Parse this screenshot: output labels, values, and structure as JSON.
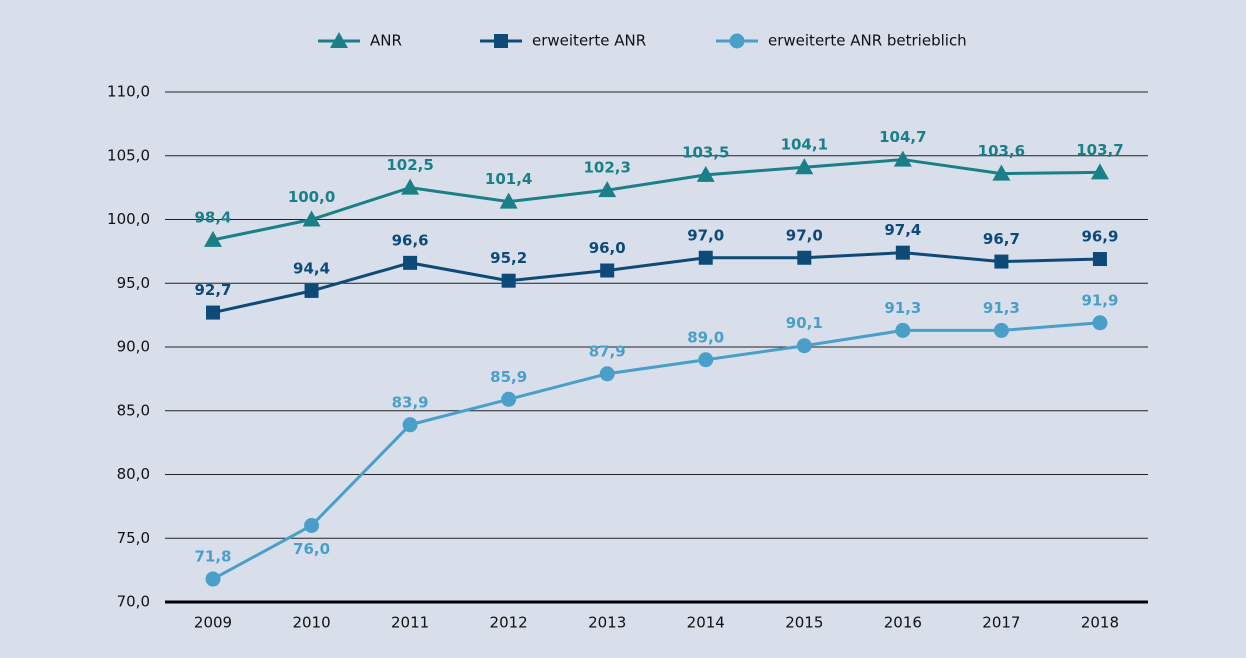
{
  "chart_data": {
    "type": "line",
    "categories": [
      "2009",
      "2010",
      "2011",
      "2012",
      "2013",
      "2014",
      "2015",
      "2016",
      "2017",
      "2018"
    ],
    "series": [
      {
        "name": "ANR",
        "color": "#1b7f87",
        "values": [
          98.4,
          100.0,
          102.5,
          101.4,
          102.3,
          103.5,
          104.1,
          104.7,
          103.6,
          103.7
        ],
        "value_labels": [
          "98,4",
          "100,0",
          "102,5",
          "101,4",
          "102,3",
          "103,5",
          "104,1",
          "104,7",
          "103,6",
          "103,7"
        ]
      },
      {
        "name": "erweiterte ANR",
        "color": "#0e4a78",
        "values": [
          92.7,
          94.4,
          96.6,
          95.2,
          96.0,
          97.0,
          97.0,
          97.4,
          96.7,
          96.9
        ],
        "value_labels": [
          "92,7",
          "94,4",
          "96,6",
          "95,2",
          "96,0",
          "97,0",
          "97,0",
          "97,4",
          "96,7",
          "96,9"
        ]
      },
      {
        "name": "erweiterte ANR betrieblich",
        "color": "#4a9fc8",
        "values": [
          71.8,
          76.0,
          83.9,
          85.9,
          87.9,
          89.0,
          90.1,
          91.3,
          91.3,
          91.9
        ],
        "value_labels": [
          "71,8",
          "76,0",
          "83,9",
          "85,9",
          "87,9",
          "89,0",
          "90,1",
          "91,3",
          "91,3",
          "91,9"
        ]
      }
    ],
    "ylim": [
      70,
      110
    ],
    "yticks": [
      {
        "value": 70,
        "label": "70,0"
      },
      {
        "value": 75,
        "label": "75,0"
      },
      {
        "value": 80,
        "label": "80,0"
      },
      {
        "value": 85,
        "label": "85,0"
      },
      {
        "value": 90,
        "label": "90,0"
      },
      {
        "value": 95,
        "label": "95,0"
      },
      {
        "value": 100,
        "label": "100,0"
      },
      {
        "value": 105,
        "label": "105,0"
      },
      {
        "value": 110,
        "label": "110,0"
      }
    ],
    "grid": true,
    "legend": "top"
  }
}
